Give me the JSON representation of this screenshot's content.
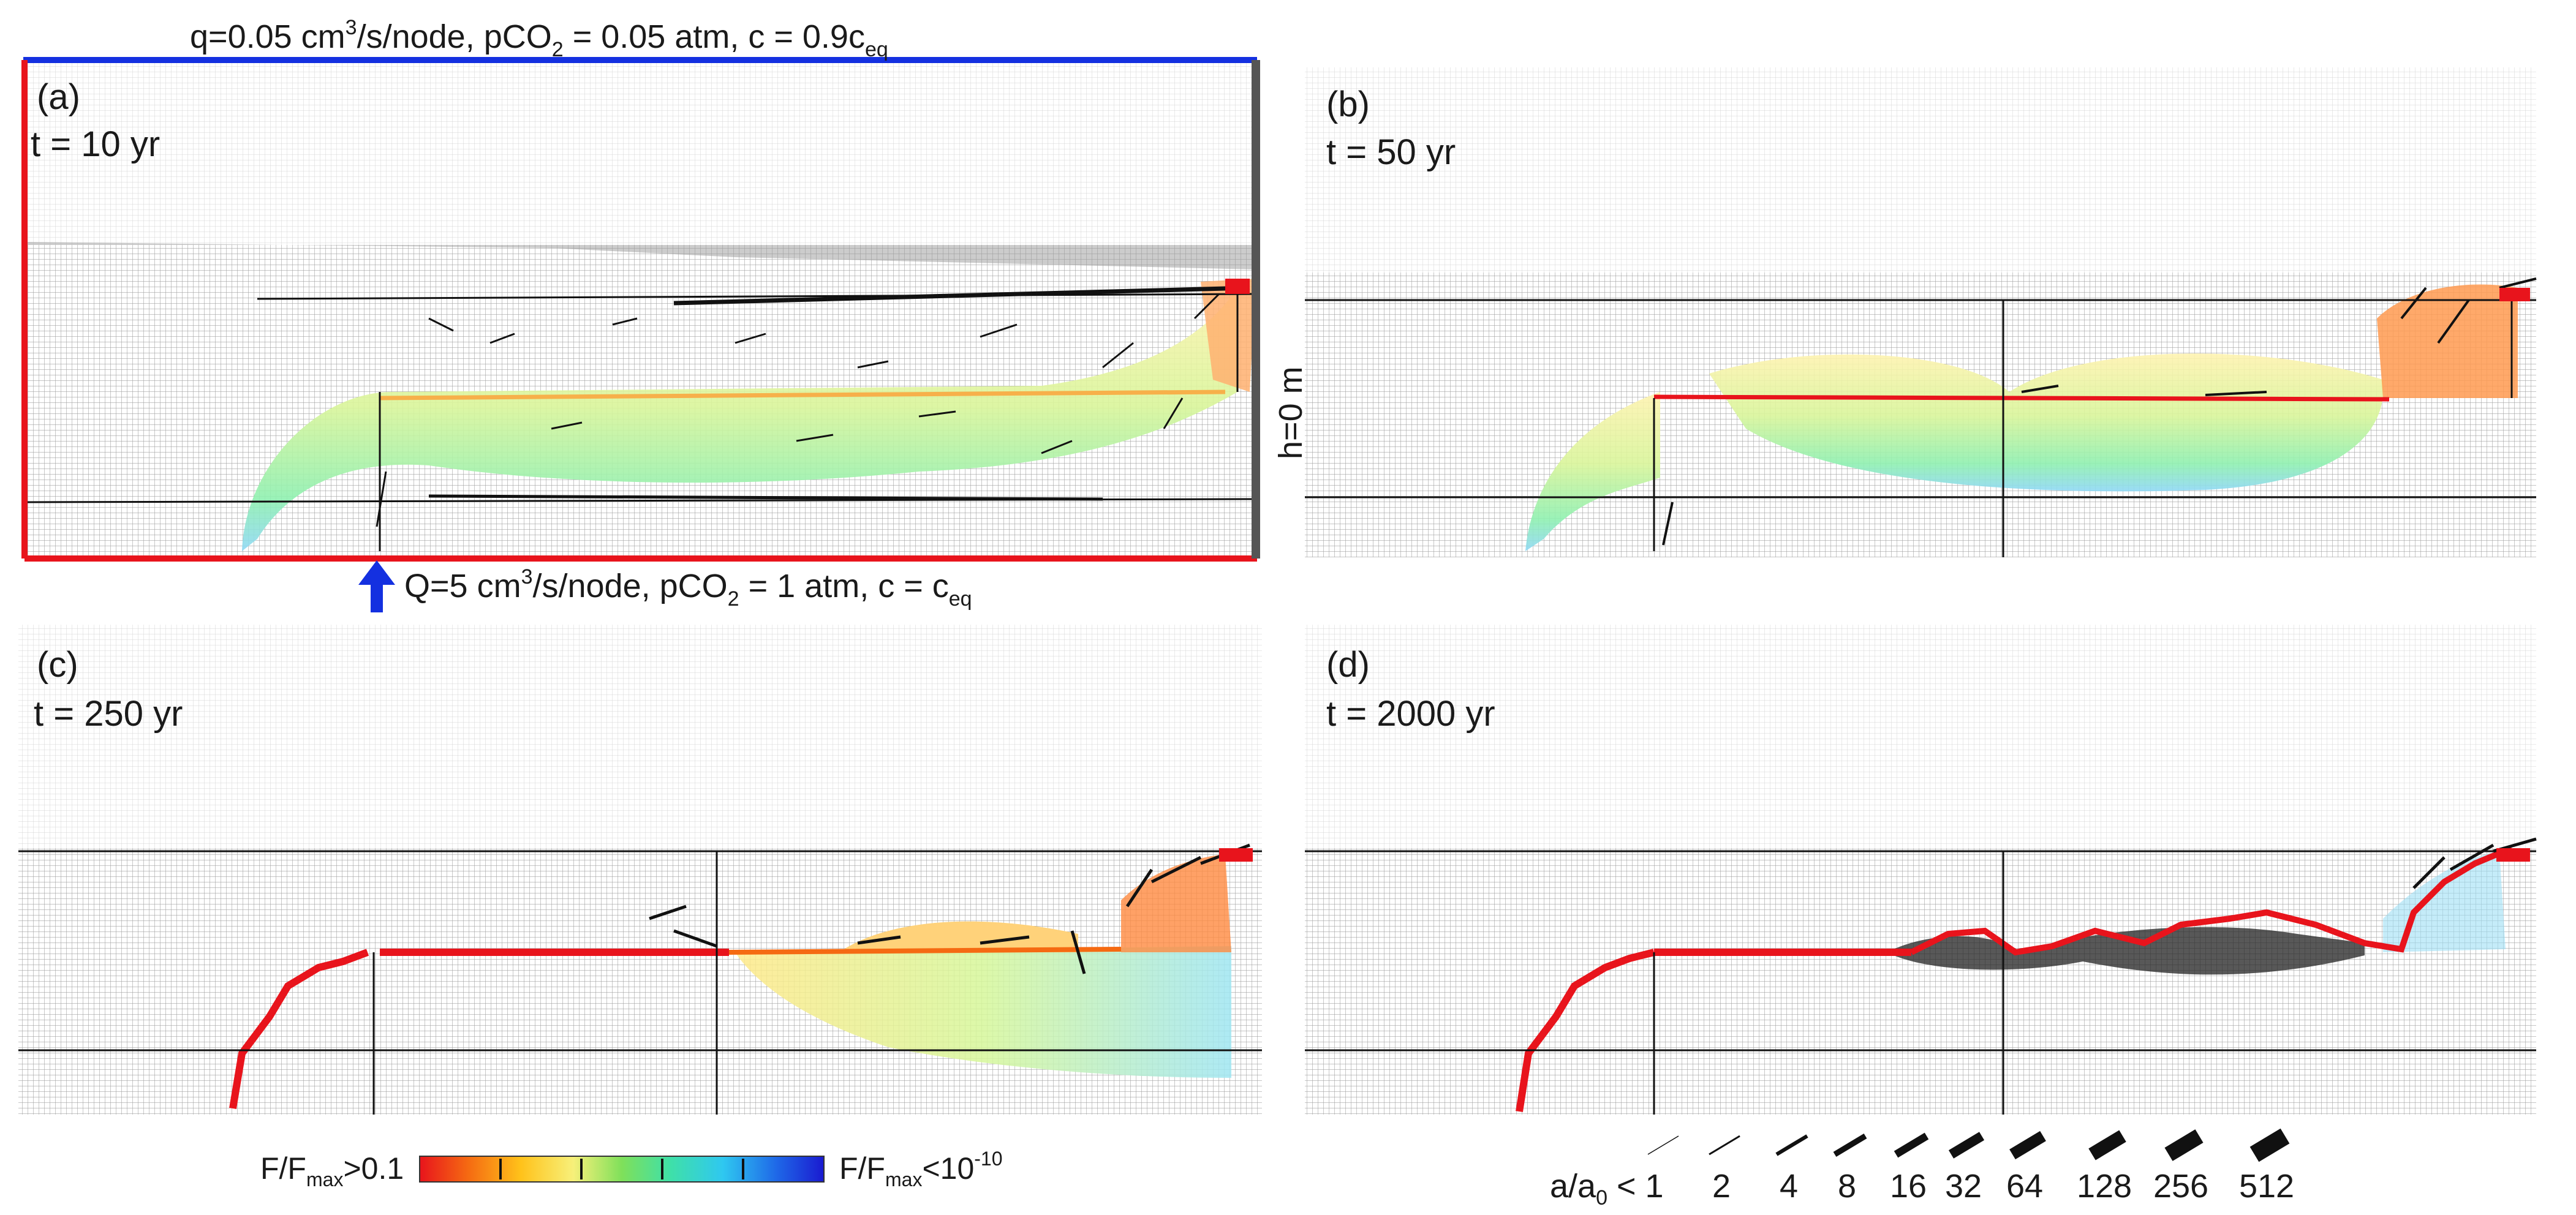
{
  "top_boundary": {
    "q": "q=0.05 cm",
    "q_exp": "3",
    "q_unit": "/s/node, pCO",
    "q_sub": "2",
    "q_rest": " = 0.05 atm, c = 0.9c",
    "q_csub": "eq"
  },
  "bottom_boundary": {
    "Q": "Q=5 cm",
    "Q_exp": "3",
    "Q_unit": "/s/node, pCO",
    "Q_sub": "2",
    "Q_rest": " = 1 atm, c = c",
    "Q_csub": "eq"
  },
  "right_boundary": "h=0 m",
  "panels": [
    {
      "id": "(a)",
      "time": "t = 10 yr"
    },
    {
      "id": "(b)",
      "time": "t = 50 yr"
    },
    {
      "id": "(c)",
      "time": "t = 250 yr"
    },
    {
      "id": "(d)",
      "time": "t = 2000 yr"
    }
  ],
  "colorbar": {
    "left_label": "F/F",
    "left_sub": "max",
    "left_rest": ">0.1",
    "right_label": "F/F",
    "right_sub": "max",
    "right_rest": "<10",
    "right_exp": "-10",
    "colors": [
      "#e8141c",
      "#f56a12",
      "#ffc21a",
      "#fff08a",
      "#b6f06a",
      "#3fe05a",
      "#2fe3c8",
      "#27b8f0",
      "#1f55e8",
      "#1a1ad0"
    ]
  },
  "aperture_legend": {
    "label": "a/a",
    "label_sub": "0",
    "label_rest": " < 1",
    "values": [
      "2",
      "4",
      "8",
      "16",
      "32",
      "64",
      "128",
      "256",
      "512"
    ]
  },
  "colors": {
    "boundary_flux_top": "#1430e0",
    "boundary_flux_side": "#e8141c",
    "fixed_head": "#555555",
    "inlet_arrow": "#1430e0"
  }
}
